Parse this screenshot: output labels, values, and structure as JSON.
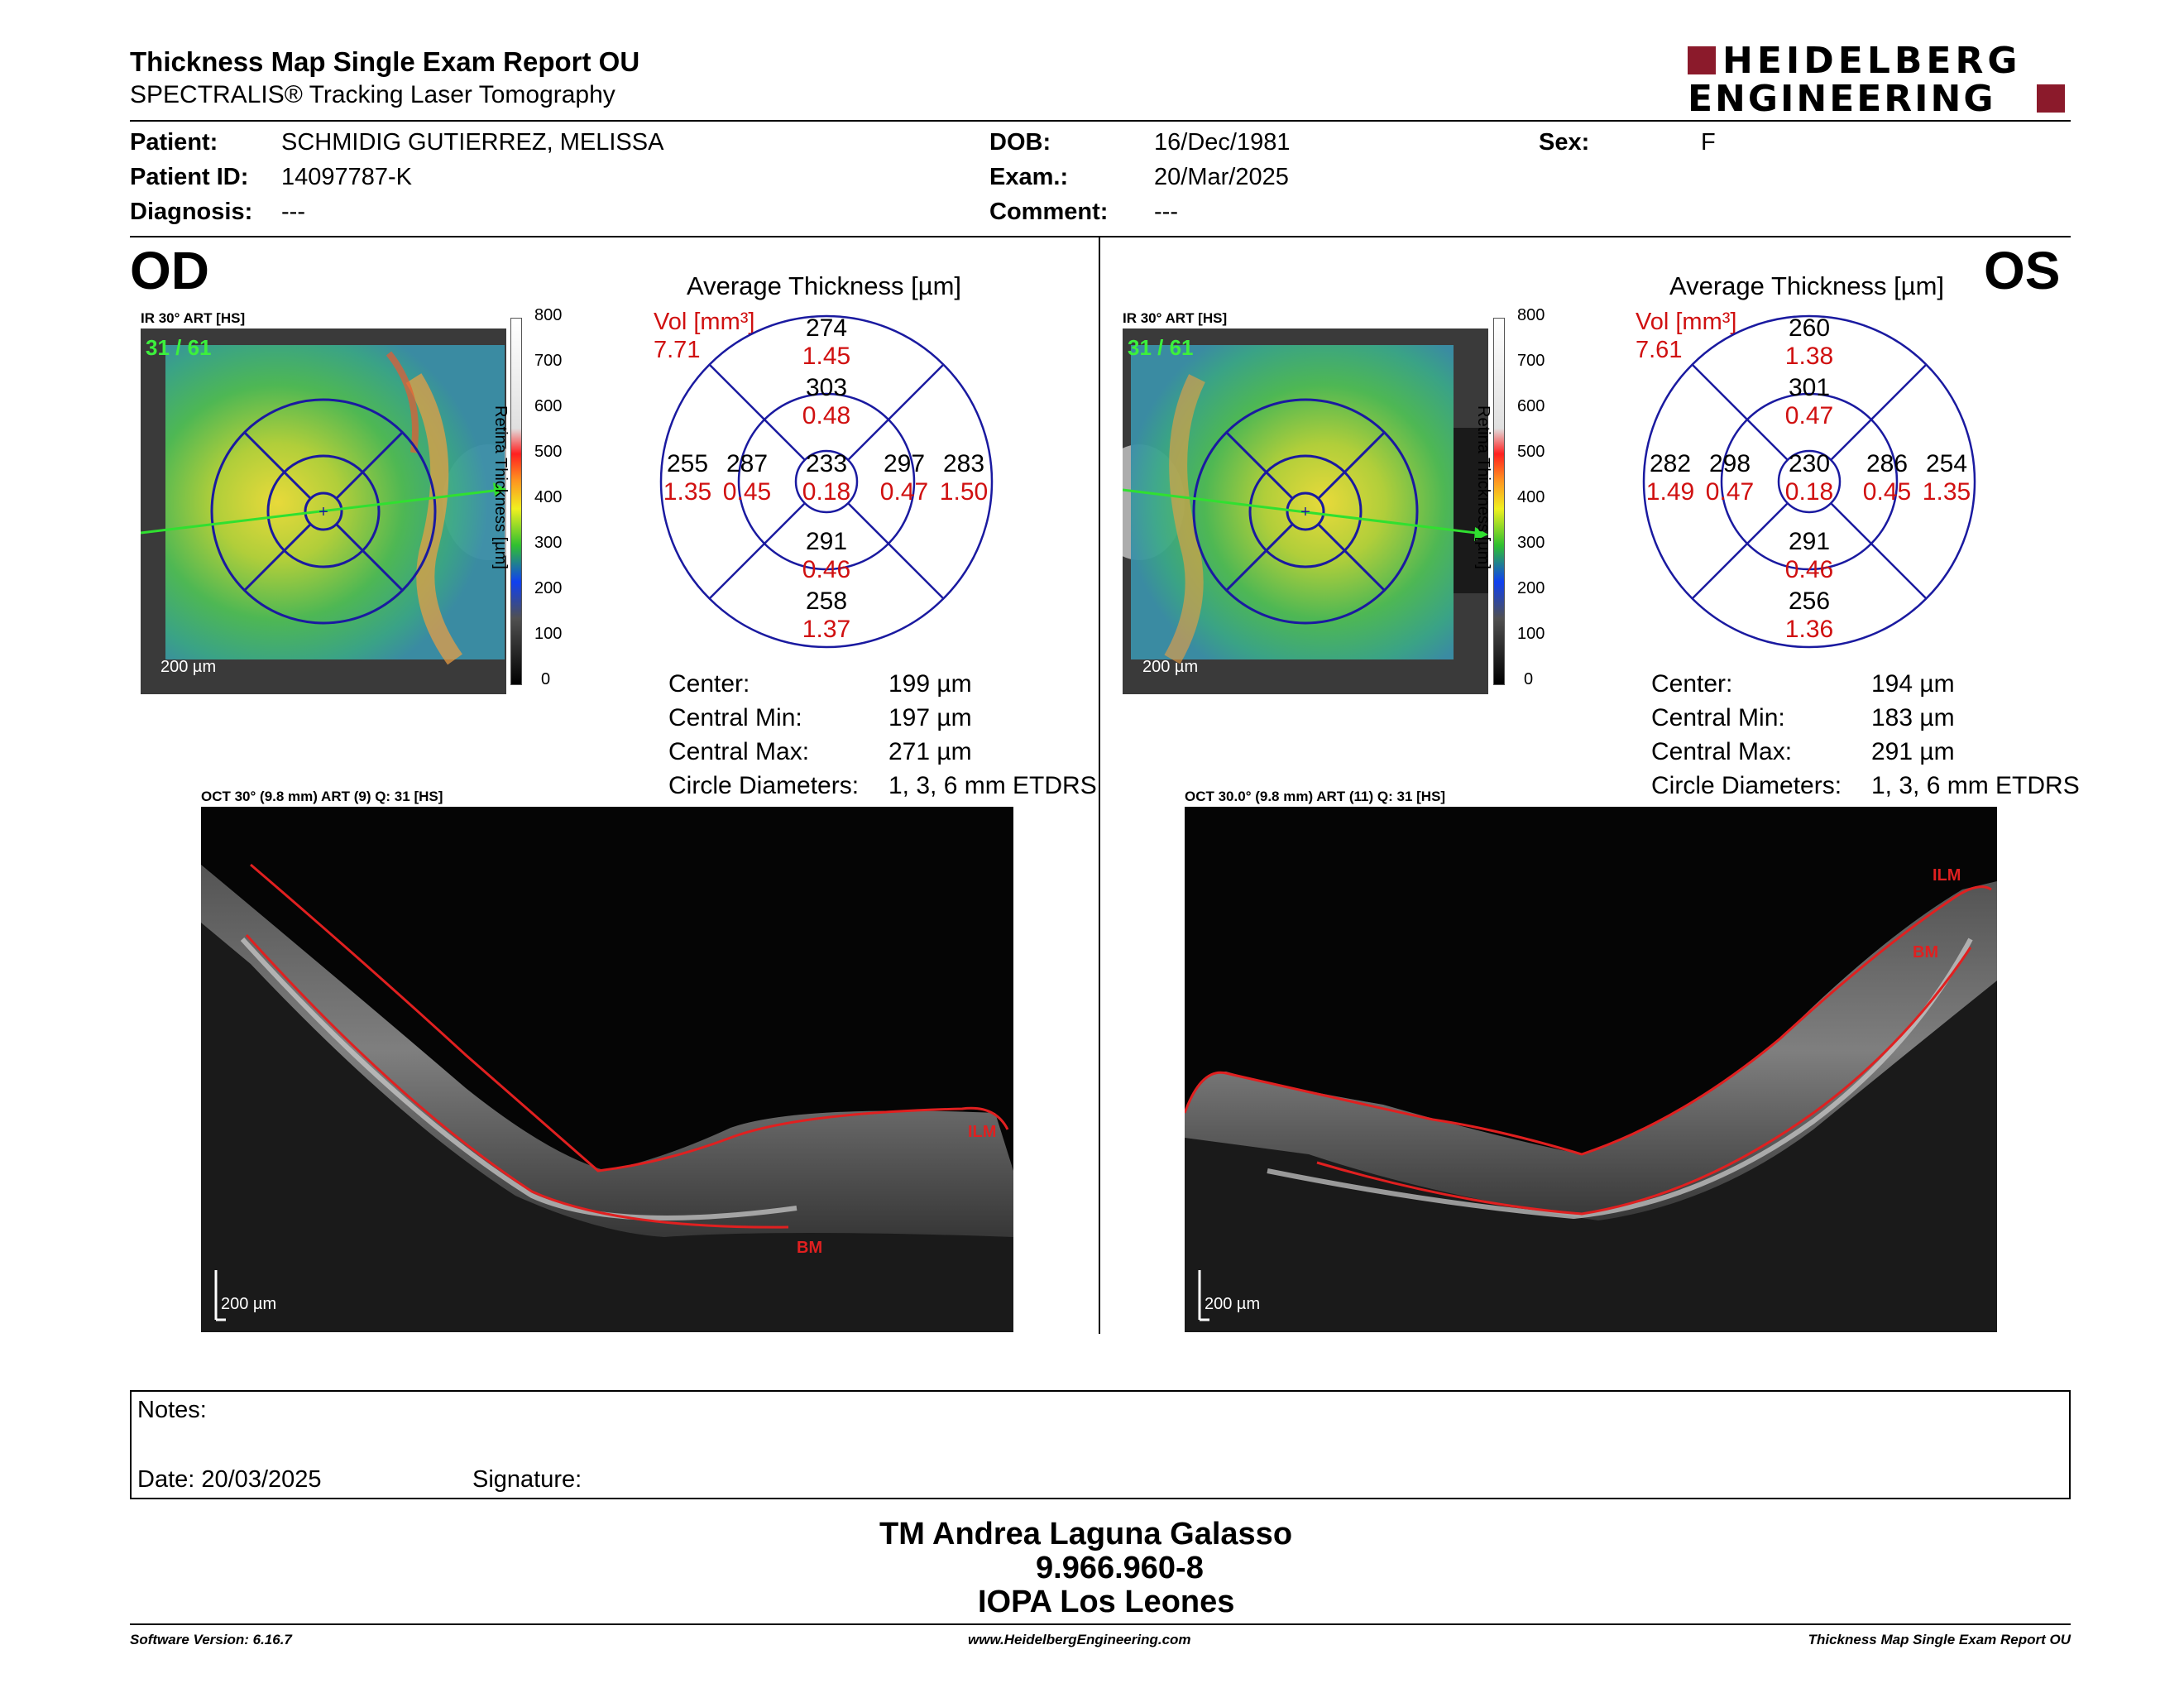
{
  "report": {
    "title": "Thickness Map Single Exam Report OU",
    "subtitle": "SPECTRALIS® Tracking Laser Tomography",
    "logo_line1": "HEIDELBERG",
    "logo_line2": "ENGINEERING"
  },
  "patient": {
    "patient_label": "Patient:",
    "patient_value": "SCHMIDIG GUTIERREZ, MELISSA",
    "id_label": "Patient ID:",
    "id_value": "14097787-K",
    "diagnosis_label": "Diagnosis:",
    "diagnosis_value": "---",
    "dob_label": "DOB:",
    "dob_value": "16/Dec/1981",
    "exam_label": "Exam.:",
    "exam_value": "20/Mar/2025",
    "comment_label": "Comment:",
    "comment_value": "---",
    "sex_label": "Sex:",
    "sex_value": "F"
  },
  "od": {
    "eye_label": "OD",
    "ir_label": "IR 30° ART [HS]",
    "frame_counter": "31 / 61",
    "scale_label": "200 µm",
    "colorbar_ticks": [
      "800",
      "700",
      "600",
      "500",
      "400",
      "300",
      "200",
      "100",
      "0"
    ],
    "colorbar_title": "Retina Thickness [µm]",
    "avg_title": "Average Thickness [µm]",
    "vol_label": "Vol [mm³]",
    "vol_value": "7.71",
    "sectors": {
      "sup_outer": [
        "274",
        "1.45"
      ],
      "sup_inner": [
        "303",
        "0.48"
      ],
      "left_outer": [
        "255",
        "1.35"
      ],
      "left_inner": [
        "287",
        "0.45"
      ],
      "center": [
        "233",
        "0.18"
      ],
      "right_inner": [
        "297",
        "0.47"
      ],
      "right_outer": [
        "283",
        "1.50"
      ],
      "inf_inner": [
        "291",
        "0.46"
      ],
      "inf_outer": [
        "258",
        "1.37"
      ]
    },
    "stats": [
      {
        "label": "Center:",
        "value": "199 µm"
      },
      {
        "label": "Central Min:",
        "value": "197 µm"
      },
      {
        "label": "Central Max:",
        "value": "271 µm"
      },
      {
        "label": "Circle Diameters:",
        "value": "1, 3, 6 mm ETDRS"
      }
    ],
    "oct_label": "OCT 30° (9.8 mm) ART (9) Q: 31 [HS]",
    "ilm": "ILM",
    "bm": "BM",
    "oct_scale": "200 µm"
  },
  "os": {
    "eye_label": "OS",
    "ir_label": "IR 30° ART [HS]",
    "frame_counter": "31 / 61",
    "scale_label": "200 µm",
    "colorbar_ticks": [
      "800",
      "700",
      "600",
      "500",
      "400",
      "300",
      "200",
      "100",
      "0"
    ],
    "colorbar_title": "Retina Thickness [µm]",
    "avg_title": "Average Thickness [µm]",
    "vol_label": "Vol [mm³]",
    "vol_value": "7.61",
    "sectors": {
      "sup_outer": [
        "260",
        "1.38"
      ],
      "sup_inner": [
        "301",
        "0.47"
      ],
      "left_outer": [
        "282",
        "1.49"
      ],
      "left_inner": [
        "298",
        "0.47"
      ],
      "center": [
        "230",
        "0.18"
      ],
      "right_inner": [
        "286",
        "0.45"
      ],
      "right_outer": [
        "254",
        "1.35"
      ],
      "inf_inner": [
        "291",
        "0.46"
      ],
      "inf_outer": [
        "256",
        "1.36"
      ]
    },
    "stats": [
      {
        "label": "Center:",
        "value": "194 µm"
      },
      {
        "label": "Central Min:",
        "value": "183 µm"
      },
      {
        "label": "Central Max:",
        "value": "291 µm"
      },
      {
        "label": "Circle Diameters:",
        "value": "1, 3, 6 mm ETDRS"
      }
    ],
    "oct_label": "OCT 30.0° (9.8 mm) ART (11) Q: 31 [HS]",
    "ilm": "ILM",
    "bm": "BM",
    "oct_scale": "200 µm"
  },
  "notes": {
    "notes_label": "Notes:",
    "date_label": "Date: 20/03/2025",
    "signature_label": "Signature:"
  },
  "signer": {
    "name": "TM Andrea Laguna Galasso",
    "id": "9.966.960-8",
    "org": "IOPA Los Leones"
  },
  "footer": {
    "software": "Software Version: 6.16.7",
    "website": "www.HeidelbergEngineering.com",
    "report_name": "Thickness Map Single Exam Report OU"
  },
  "colors": {
    "accent_red": "#d01010",
    "logo_red": "#8b1a2b",
    "grid_blue": "#1a1aa0"
  }
}
